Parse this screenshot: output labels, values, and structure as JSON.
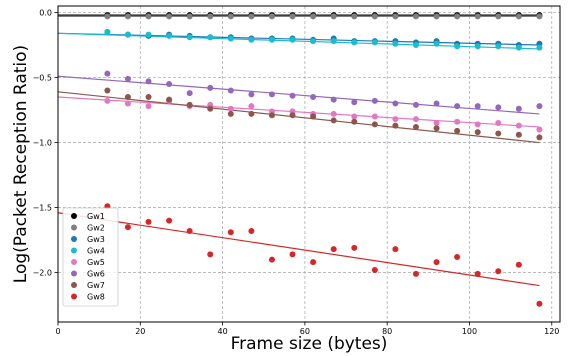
{
  "chart_data": {
    "type": "scatter",
    "xlabel": "Frame size (bytes)",
    "ylabel": "Log(Packet Reception Ratio)",
    "xlim": [
      0,
      122
    ],
    "ylim": [
      -2.38,
      0.05
    ],
    "xticks": [
      0,
      20,
      40,
      60,
      80,
      100,
      120
    ],
    "yticks": [
      0.0,
      -0.5,
      -1.0,
      -1.5,
      -2.0
    ],
    "xtick_labels": [
      "0",
      "20",
      "40",
      "60",
      "80",
      "100",
      "120"
    ],
    "ytick_labels": [
      "0.0",
      "−0.5",
      "−1.0",
      "−1.5",
      "−2.0"
    ],
    "grid": true,
    "legend_position": "bottom-left",
    "x": [
      12,
      17,
      22,
      27,
      32,
      37,
      42,
      47,
      52,
      57,
      62,
      67,
      72,
      77,
      82,
      87,
      92,
      97,
      102,
      107,
      112,
      117
    ],
    "series": [
      {
        "name": "Gw1",
        "color": "#000000",
        "values": [
          -0.02,
          -0.02,
          -0.02,
          -0.02,
          -0.02,
          -0.02,
          -0.02,
          -0.02,
          -0.02,
          -0.02,
          -0.02,
          -0.02,
          -0.02,
          -0.02,
          -0.02,
          -0.02,
          -0.02,
          -0.02,
          -0.02,
          -0.02,
          -0.02,
          -0.02
        ],
        "fit": [
          [
            0,
            -0.02
          ],
          [
            117,
            -0.02
          ]
        ]
      },
      {
        "name": "Gw2",
        "color": "#7f7f7f",
        "values": [
          -0.03,
          -0.03,
          -0.03,
          -0.03,
          -0.03,
          -0.03,
          -0.03,
          -0.03,
          -0.03,
          -0.03,
          -0.03,
          -0.03,
          -0.03,
          -0.03,
          -0.03,
          -0.03,
          -0.03,
          -0.03,
          -0.03,
          -0.03,
          -0.03,
          -0.03
        ],
        "fit": [
          [
            0,
            -0.03
          ],
          [
            117,
            -0.03
          ]
        ]
      },
      {
        "name": "Gw3",
        "color": "#1f77b4",
        "values": [
          -0.15,
          -0.17,
          -0.18,
          -0.17,
          -0.18,
          -0.19,
          -0.19,
          -0.2,
          -0.2,
          -0.2,
          -0.21,
          -0.2,
          -0.22,
          -0.22,
          -0.22,
          -0.23,
          -0.22,
          -0.24,
          -0.24,
          -0.24,
          -0.25,
          -0.24
        ],
        "fit": [
          [
            0,
            -0.16
          ],
          [
            117,
            -0.25
          ]
        ]
      },
      {
        "name": "Gw4",
        "color": "#17becf",
        "values": [
          -0.15,
          -0.17,
          -0.17,
          -0.18,
          -0.19,
          -0.19,
          -0.2,
          -0.21,
          -0.21,
          -0.21,
          -0.22,
          -0.22,
          -0.23,
          -0.23,
          -0.24,
          -0.25,
          -0.24,
          -0.26,
          -0.26,
          -0.26,
          -0.27,
          -0.27
        ],
        "fit": [
          [
            0,
            -0.16
          ],
          [
            117,
            -0.28
          ]
        ]
      },
      {
        "name": "Gw5",
        "color": "#e377c2",
        "values": [
          -0.68,
          -0.7,
          -0.72,
          -0.68,
          -0.72,
          -0.71,
          -0.74,
          -0.72,
          -0.76,
          -0.76,
          -0.78,
          -0.78,
          -0.8,
          -0.8,
          -0.82,
          -0.82,
          -0.85,
          -0.84,
          -0.86,
          -0.85,
          -0.87,
          -0.9
        ],
        "fit": [
          [
            0,
            -0.65
          ],
          [
            117,
            -0.88
          ]
        ]
      },
      {
        "name": "Gw6",
        "color": "#9467bd",
        "values": [
          -0.47,
          -0.51,
          -0.53,
          -0.55,
          -0.62,
          -0.58,
          -0.6,
          -0.63,
          -0.63,
          -0.64,
          -0.65,
          -0.67,
          -0.69,
          -0.68,
          -0.7,
          -0.71,
          -0.7,
          -0.72,
          -0.72,
          -0.73,
          -0.74,
          -0.72
        ],
        "fit": [
          [
            0,
            -0.49
          ],
          [
            117,
            -0.78
          ]
        ]
      },
      {
        "name": "Gw7",
        "color": "#8c564b",
        "values": [
          -0.6,
          -0.65,
          -0.65,
          -0.67,
          -0.71,
          -0.74,
          -0.78,
          -0.78,
          -0.79,
          -0.79,
          -0.8,
          -0.83,
          -0.84,
          -0.86,
          -0.87,
          -0.88,
          -0.89,
          -0.91,
          -0.92,
          -0.93,
          -0.94,
          -0.96
        ],
        "fit": [
          [
            0,
            -0.61
          ],
          [
            117,
            -1.0
          ]
        ]
      },
      {
        "name": "Gw8",
        "color": "#d62728",
        "values": [
          -1.49,
          -1.65,
          -1.61,
          -1.6,
          -1.68,
          -1.86,
          -1.69,
          -1.68,
          -1.9,
          -1.86,
          -1.92,
          -1.82,
          -1.81,
          -1.98,
          -1.82,
          -2.01,
          -1.92,
          -1.88,
          -2.01,
          -1.99,
          -1.94,
          -2.24
        ],
        "fit": [
          [
            0,
            -1.54
          ],
          [
            117,
            -2.1
          ]
        ]
      }
    ]
  }
}
